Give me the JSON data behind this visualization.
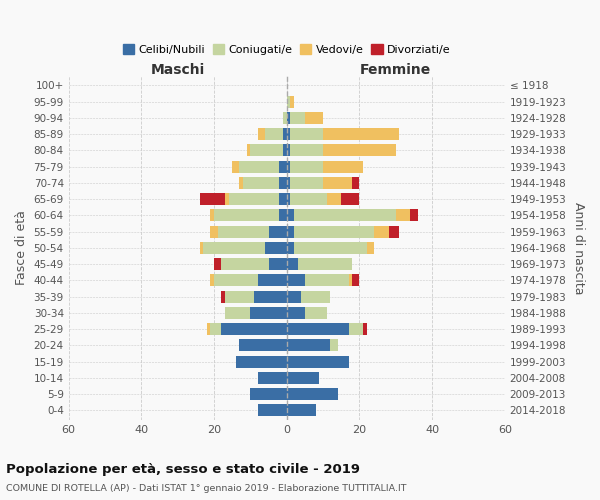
{
  "age_groups": [
    "0-4",
    "5-9",
    "10-14",
    "15-19",
    "20-24",
    "25-29",
    "30-34",
    "35-39",
    "40-44",
    "45-49",
    "50-54",
    "55-59",
    "60-64",
    "65-69",
    "70-74",
    "75-79",
    "80-84",
    "85-89",
    "90-94",
    "95-99",
    "100+"
  ],
  "birth_years": [
    "2014-2018",
    "2009-2013",
    "2004-2008",
    "1999-2003",
    "1994-1998",
    "1989-1993",
    "1984-1988",
    "1979-1983",
    "1974-1978",
    "1969-1973",
    "1964-1968",
    "1959-1963",
    "1954-1958",
    "1949-1953",
    "1944-1948",
    "1939-1943",
    "1934-1938",
    "1929-1933",
    "1924-1928",
    "1919-1923",
    "≤ 1918"
  ],
  "colors": {
    "celibi": "#3a6ea5",
    "coniugati": "#c5d5a0",
    "vedovi": "#f0c060",
    "divorziati": "#c0202a"
  },
  "legend_labels": [
    "Celibi/Nubili",
    "Coniugati/e",
    "Vedovi/e",
    "Divorziati/e"
  ],
  "maschi": {
    "celibi": [
      8,
      10,
      8,
      14,
      13,
      18,
      10,
      9,
      8,
      5,
      6,
      5,
      2,
      2,
      2,
      2,
      1,
      1,
      0,
      0,
      0
    ],
    "coniugati": [
      0,
      0,
      0,
      0,
      0,
      3,
      7,
      8,
      12,
      13,
      17,
      14,
      18,
      14,
      10,
      11,
      9,
      5,
      1,
      0,
      0
    ],
    "vedovi": [
      0,
      0,
      0,
      0,
      0,
      1,
      0,
      0,
      1,
      0,
      1,
      2,
      1,
      1,
      1,
      2,
      1,
      2,
      0,
      0,
      0
    ],
    "divorziati": [
      0,
      0,
      0,
      0,
      0,
      0,
      0,
      1,
      0,
      2,
      0,
      0,
      0,
      7,
      0,
      0,
      0,
      0,
      0,
      0,
      0
    ]
  },
  "femmine": {
    "nubili": [
      8,
      14,
      9,
      17,
      12,
      17,
      5,
      4,
      5,
      3,
      2,
      2,
      2,
      1,
      1,
      1,
      1,
      1,
      1,
      0,
      0
    ],
    "coniugate": [
      0,
      0,
      0,
      0,
      2,
      4,
      6,
      8,
      12,
      15,
      20,
      22,
      28,
      10,
      9,
      9,
      9,
      9,
      4,
      1,
      0
    ],
    "vedove": [
      0,
      0,
      0,
      0,
      0,
      0,
      0,
      0,
      1,
      0,
      2,
      4,
      4,
      4,
      8,
      11,
      20,
      21,
      5,
      1,
      0
    ],
    "divorziate": [
      0,
      0,
      0,
      0,
      0,
      1,
      0,
      0,
      2,
      0,
      0,
      3,
      2,
      5,
      2,
      0,
      0,
      0,
      0,
      0,
      0
    ]
  },
  "xlim": 60,
  "title": "Popolazione per età, sesso e stato civile - 2019",
  "subtitle": "COMUNE DI ROTELLA (AP) - Dati ISTAT 1° gennaio 2019 - Elaborazione TUTTITALIA.IT",
  "ylabel_left": "Fasce di età",
  "ylabel_right": "Anni di nascita",
  "xlabel_maschi": "Maschi",
  "xlabel_femmine": "Femmine",
  "bg_color": "#f9f9f9",
  "grid_color": "#cccccc"
}
